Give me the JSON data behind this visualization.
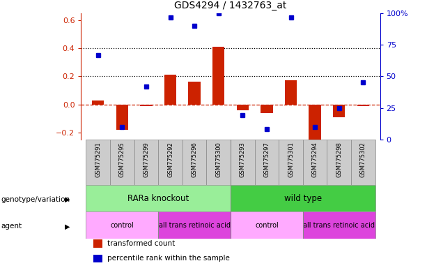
{
  "title": "GDS4294 / 1432763_at",
  "samples": [
    "GSM775291",
    "GSM775295",
    "GSM775299",
    "GSM775292",
    "GSM775296",
    "GSM775300",
    "GSM775293",
    "GSM775297",
    "GSM775301",
    "GSM775294",
    "GSM775298",
    "GSM775302"
  ],
  "red_values": [
    0.03,
    -0.18,
    -0.01,
    0.21,
    0.16,
    0.41,
    -0.04,
    -0.06,
    0.17,
    -0.25,
    -0.09,
    -0.01
  ],
  "blue_pct": [
    67,
    10,
    42,
    97,
    90,
    100,
    19,
    8,
    97,
    10,
    25,
    45
  ],
  "ylim_left": [
    -0.25,
    0.65
  ],
  "ylim_right": [
    0,
    100
  ],
  "yticks_left": [
    -0.2,
    0.0,
    0.2,
    0.4,
    0.6
  ],
  "yticks_right": [
    0,
    25,
    50,
    75,
    100
  ],
  "hlines": [
    0.4,
    0.2
  ],
  "red_color": "#cc2200",
  "blue_color": "#0000cc",
  "bar_width": 0.5,
  "genotype_groups": [
    {
      "label": "RARa knockout",
      "start": 0,
      "end": 5,
      "color": "#99ee99"
    },
    {
      "label": "wild type",
      "start": 6,
      "end": 11,
      "color": "#44cc44"
    }
  ],
  "agent_groups": [
    {
      "label": "control",
      "start": 0,
      "end": 2,
      "color": "#ffaaff"
    },
    {
      "label": "all trans retinoic acid",
      "start": 3,
      "end": 5,
      "color": "#dd44dd"
    },
    {
      "label": "control",
      "start": 6,
      "end": 8,
      "color": "#ffaaff"
    },
    {
      "label": "all trans retinoic acid",
      "start": 9,
      "end": 11,
      "color": "#dd44dd"
    }
  ],
  "row_labels": [
    "genotype/variation",
    "agent"
  ],
  "legend_items": [
    {
      "label": "transformed count",
      "color": "#cc2200"
    },
    {
      "label": "percentile rank within the sample",
      "color": "#0000cc"
    }
  ],
  "left_axis_color": "#cc2200",
  "right_axis_color": "#0000cc",
  "sample_box_color": "#cccccc",
  "fig_width": 6.13,
  "fig_height": 3.84
}
